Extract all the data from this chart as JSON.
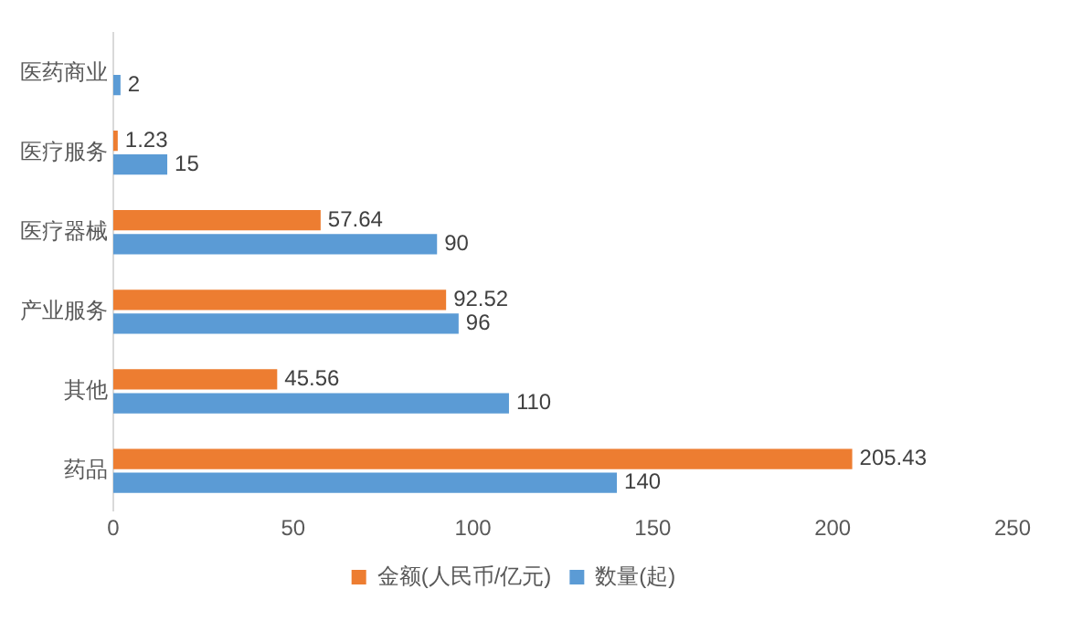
{
  "chart_data": {
    "type": "bar",
    "orientation": "horizontal",
    "categories": [
      "医药商业",
      "医疗服务",
      "医疗器械",
      "产业服务",
      "其他",
      "药品"
    ],
    "series": [
      {
        "name": "金额(人民币/亿元)",
        "color": "#ed7d31",
        "values": [
          null,
          1.23,
          57.64,
          92.52,
          45.56,
          205.43
        ]
      },
      {
        "name": "数量(起)",
        "color": "#5b9bd5",
        "values": [
          2,
          15,
          90,
          96,
          110,
          140
        ]
      }
    ],
    "xlim": [
      0,
      250
    ],
    "xticks": [
      0,
      50,
      100,
      150,
      200,
      250
    ],
    "data_labels": true,
    "legend": "bottom",
    "grid": false
  }
}
